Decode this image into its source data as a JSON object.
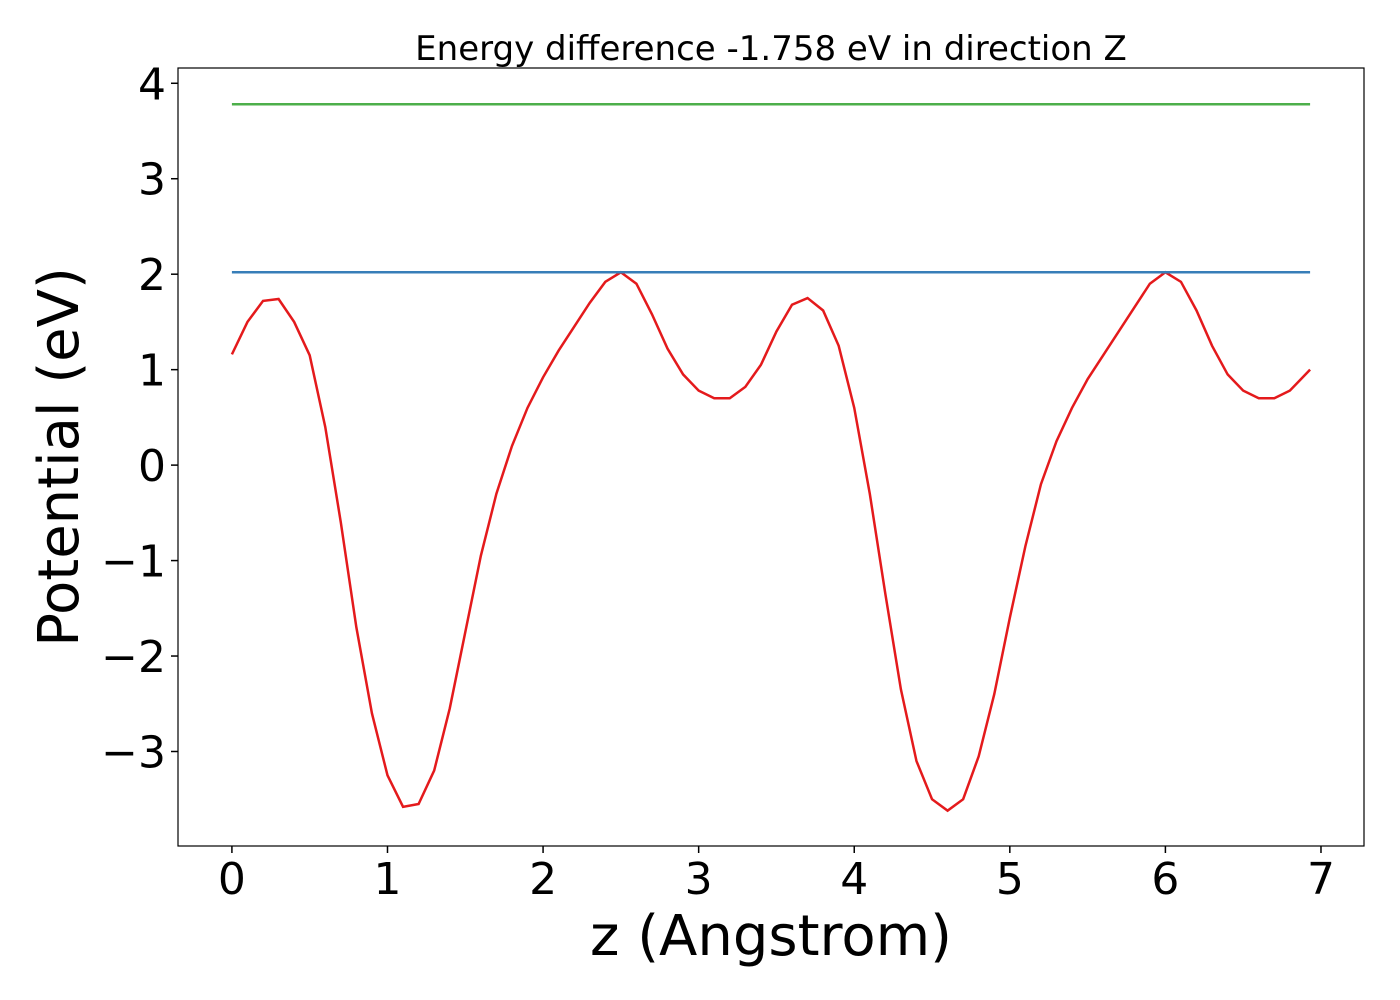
{
  "chart_data": {
    "type": "line",
    "title": "Energy difference -1.758 eV in direction Z",
    "xlabel": "z (Angstrom)",
    "ylabel": "Potential (eV)",
    "xlim": [
      -0.3465,
      7.2765
    ],
    "ylim": [
      -3.99,
      4.16
    ],
    "xticks": [
      0,
      1,
      2,
      3,
      4,
      5,
      6,
      7
    ],
    "yticks": [
      {
        "value": -3,
        "label": "−3"
      },
      {
        "value": -2,
        "label": "−2"
      },
      {
        "value": -1,
        "label": "−1"
      },
      0,
      1,
      2,
      3,
      4
    ],
    "series": [
      {
        "color": "#e41a1c",
        "x": [
          0.0,
          0.1,
          0.2,
          0.3,
          0.4,
          0.5,
          0.6,
          0.7,
          0.8,
          0.9,
          1.0,
          1.1,
          1.2,
          1.3,
          1.4,
          1.5,
          1.6,
          1.7,
          1.8,
          1.9,
          2.0,
          2.1,
          2.2,
          2.3,
          2.4,
          2.5,
          2.6,
          2.7,
          2.8,
          2.9,
          3.0,
          3.1,
          3.2,
          3.3,
          3.4,
          3.5,
          3.6,
          3.7,
          3.8,
          3.9,
          4.0,
          4.1,
          4.2,
          4.3,
          4.4,
          4.5,
          4.6,
          4.7,
          4.8,
          4.9,
          5.0,
          5.1,
          5.2,
          5.3,
          5.4,
          5.5,
          5.6,
          5.7,
          5.8,
          5.9,
          6.0,
          6.1,
          6.2,
          6.3,
          6.4,
          6.5,
          6.6,
          6.7,
          6.8,
          6.93
        ],
        "values": [
          1.16,
          1.5,
          1.72,
          1.74,
          1.5,
          1.15,
          0.4,
          -0.6,
          -1.7,
          -2.6,
          -3.25,
          -3.58,
          -3.55,
          -3.2,
          -2.55,
          -1.75,
          -0.95,
          -0.3,
          0.2,
          0.6,
          0.92,
          1.2,
          1.45,
          1.7,
          1.92,
          2.02,
          1.9,
          1.58,
          1.22,
          0.95,
          0.78,
          0.7,
          0.7,
          0.82,
          1.05,
          1.4,
          1.68,
          1.75,
          1.62,
          1.25,
          0.6,
          -0.3,
          -1.35,
          -2.35,
          -3.1,
          -3.5,
          -3.62,
          -3.5,
          -3.05,
          -2.4,
          -1.6,
          -0.85,
          -0.2,
          0.25,
          0.6,
          0.9,
          1.15,
          1.4,
          1.65,
          1.9,
          2.02,
          1.92,
          1.62,
          1.25,
          0.95,
          0.78,
          0.7,
          0.7,
          0.78,
          1.0
        ]
      },
      {
        "color": "#377eb8",
        "x": [
          0,
          6.93
        ],
        "values": [
          2.02,
          2.02
        ]
      },
      {
        "color": "#4daf4a",
        "x": [
          0,
          6.93
        ],
        "values": [
          3.78,
          3.78
        ]
      }
    ]
  }
}
